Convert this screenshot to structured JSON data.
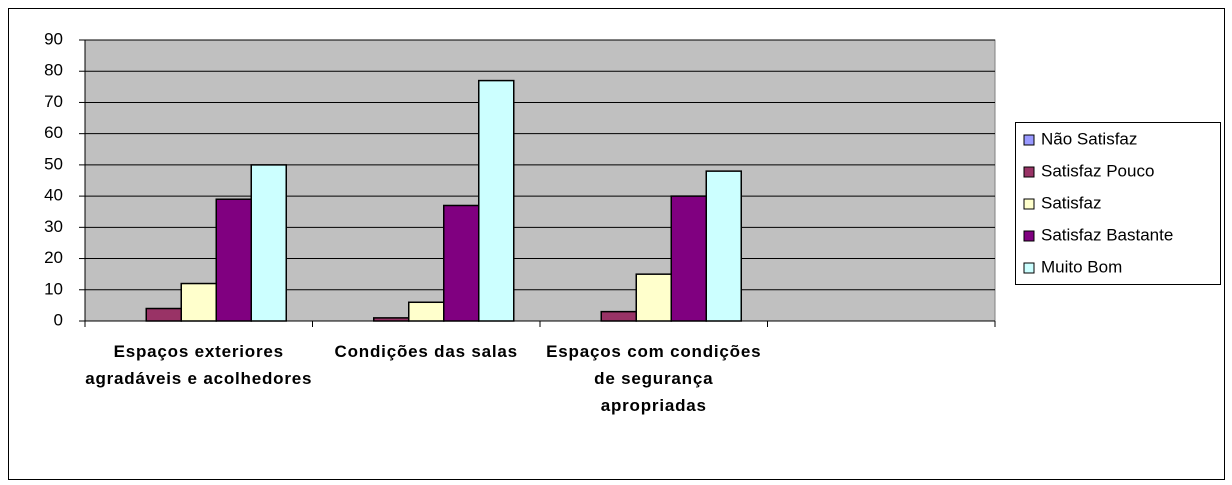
{
  "chart_data": {
    "type": "bar",
    "categories": [
      "Espaços exteriores agradáveis e acolhedores",
      "Condições das salas",
      "Espaços com condições de segurança apropriadas",
      null
    ],
    "series": [
      {
        "name": "Não Satisfaz",
        "color": "#9999ff",
        "values": [
          0,
          0,
          0,
          null
        ]
      },
      {
        "name": "Satisfaz Pouco",
        "color": "#993366",
        "values": [
          4,
          1,
          3,
          null
        ]
      },
      {
        "name": "Satisfaz",
        "color": "#ffffcc",
        "values": [
          12,
          6,
          15,
          null
        ]
      },
      {
        "name": "Satisfaz Bastante",
        "color": "#800080",
        "values": [
          39,
          37,
          40,
          null
        ]
      },
      {
        "name": "Muito Bom",
        "color": "#ccffff",
        "values": [
          50,
          77,
          48,
          null
        ]
      }
    ],
    "ylim": [
      0,
      90
    ],
    "yticks": [
      0,
      10,
      20,
      30,
      40,
      50,
      60,
      70,
      80,
      90
    ],
    "grid": true,
    "legend": "right"
  }
}
